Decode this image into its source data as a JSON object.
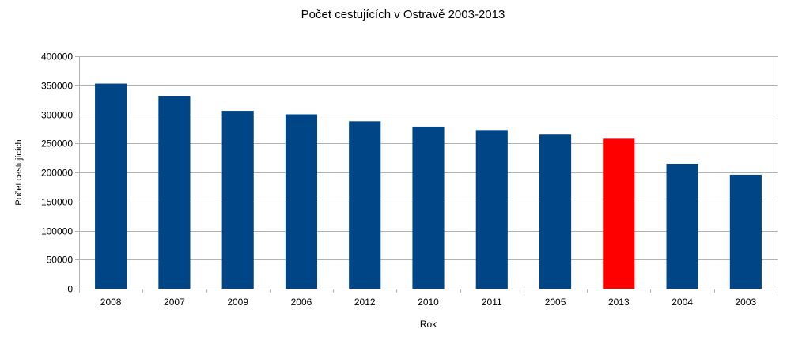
{
  "chart_data": {
    "type": "bar",
    "title": "Počet cestujících v Ostravě 2003-2013",
    "xlabel": "Rok",
    "ylabel": "Počet cestujících",
    "categories": [
      "2008",
      "2007",
      "2009",
      "2006",
      "2012",
      "2010",
      "2011",
      "2005",
      "2013",
      "2004",
      "2003"
    ],
    "values": [
      353000,
      331000,
      306000,
      300000,
      288000,
      279000,
      273000,
      265000,
      258000,
      215000,
      196000
    ],
    "highlight_category": "2013",
    "ylim": [
      0,
      400000
    ],
    "yticks": [
      0,
      50000,
      100000,
      150000,
      200000,
      250000,
      300000,
      350000,
      400000
    ],
    "grid": true,
    "legend": "none",
    "colors": {
      "bar": "#004586",
      "highlight": "#ff0000",
      "grid": "#b3b3b3",
      "axis": "#b3b3b3"
    }
  }
}
